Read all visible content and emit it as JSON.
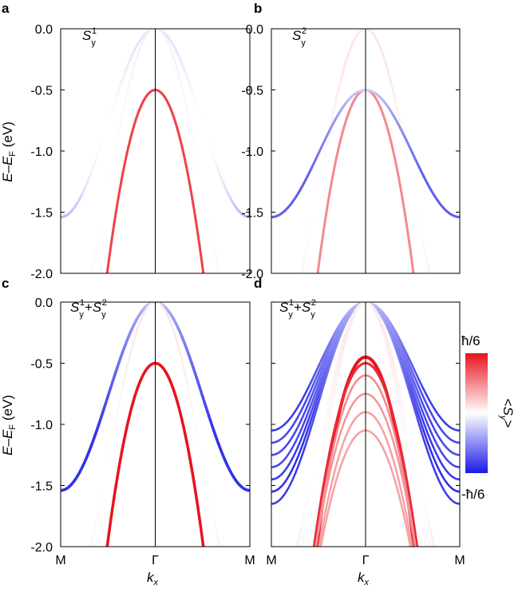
{
  "chart_data": [
    {
      "id": "a",
      "type": "line",
      "panel_label": "a",
      "title": {
        "prefix": "",
        "main": "S",
        "sub": "y",
        "sup": "1",
        "plus": "",
        "main2": "",
        "sub2": "",
        "sup2": ""
      },
      "ylim": [
        -2.0,
        0.0
      ],
      "xlim": [
        -1,
        1
      ],
      "yticks": [
        "0.0",
        "-0.5",
        "-1.0",
        "-1.5",
        "-2.0"
      ],
      "ytick_values": [
        0.0,
        -0.5,
        -1.0,
        -1.5,
        -2.0
      ],
      "show_yticks": true,
      "show_xticks": false,
      "series": [
        {
          "name": "outer band",
          "kind": "cosine",
          "top": 0.0,
          "bottom": -1.54,
          "spin": -0.35,
          "width": 3
        },
        {
          "name": "inner band",
          "kind": "parabola",
          "top": -0.5,
          "curv": 5.8,
          "spin": 0.8,
          "width": 3
        },
        {
          "name": "upper spin-split band",
          "kind": "cosine",
          "top": 0.0,
          "bottom": -2.6,
          "spin": -0.15,
          "width": 2.5
        }
      ]
    },
    {
      "id": "b",
      "type": "line",
      "panel_label": "b",
      "title": {
        "prefix": "",
        "main": "S",
        "sub": "y",
        "sup": "2",
        "plus": "",
        "main2": "",
        "sub2": "",
        "sup2": ""
      },
      "ylim": [
        -2.0,
        0.0
      ],
      "xlim": [
        -1,
        1
      ],
      "yticks": [
        "0.0",
        "-0.5",
        "-1.0",
        "-1.5",
        "-2.0"
      ],
      "ytick_values": [
        0.0,
        -0.5,
        -1.0,
        -1.5,
        -2.0
      ],
      "show_yticks": true,
      "show_xticks": false,
      "series": [
        {
          "name": "outer band",
          "kind": "cosine",
          "top": 0.0,
          "bottom": -2.6,
          "spin": 0.3,
          "width": 3
        },
        {
          "name": "inner band",
          "kind": "parabola",
          "top": -0.5,
          "curv": 5.8,
          "spin": 0.5,
          "width": 3
        },
        {
          "name": "crossing band",
          "kind": "cosine",
          "top": -0.5,
          "bottom": -1.54,
          "spin": -0.7,
          "width": 3
        }
      ]
    },
    {
      "id": "c",
      "type": "line",
      "panel_label": "c",
      "title": {
        "prefix": "",
        "main": "S",
        "sub": "y",
        "sup": "1",
        "plus": "+",
        "main2": "S",
        "sub2": "y",
        "sup2": "2"
      },
      "ylim": [
        -2.0,
        0.0
      ],
      "xlim": [
        -1,
        1
      ],
      "yticks": [
        "0.0",
        "-0.5",
        "-1.0",
        "-1.5",
        "-2.0"
      ],
      "ytick_values": [
        0.0,
        -0.5,
        -1.0,
        -1.5,
        -2.0
      ],
      "show_yticks": true,
      "show_xticks": true,
      "series": [
        {
          "name": "outer band",
          "kind": "cosine",
          "top": 0.0,
          "bottom": -1.54,
          "spin": -0.9,
          "width": 3.5
        },
        {
          "name": "inner band",
          "kind": "parabola",
          "top": -0.5,
          "curv": 5.8,
          "spin": 1.0,
          "width": 3.5
        },
        {
          "name": "upper band",
          "kind": "cosine",
          "top": 0.0,
          "bottom": -2.6,
          "spin": 0.3,
          "width": 2.5
        }
      ]
    },
    {
      "id": "d",
      "type": "line",
      "panel_label": "d",
      "title": {
        "prefix": "",
        "main": "S",
        "sub": "y",
        "sup": "1",
        "plus": "+",
        "main2": "S",
        "sub2": "y",
        "sup2": "2"
      },
      "ylim": [
        -2.0,
        0.0
      ],
      "xlim": [
        -1,
        1
      ],
      "yticks": [
        "0.0",
        "-0.5",
        "-1.0",
        "-1.5",
        "-2.0"
      ],
      "ytick_values": [
        0.0,
        -0.5,
        -1.0,
        -1.5,
        -2.0
      ],
      "show_yticks": false,
      "show_xticks": true,
      "series": [
        {
          "name": "bulk band 1",
          "kind": "cosine",
          "top": 0.0,
          "bottom": -1.05,
          "spin": -0.85,
          "width": 2.5
        },
        {
          "name": "bulk band 2",
          "kind": "cosine",
          "top": 0.0,
          "bottom": -1.15,
          "spin": -0.8,
          "width": 2.5
        },
        {
          "name": "bulk band 3",
          "kind": "cosine",
          "top": 0.0,
          "bottom": -1.25,
          "spin": -0.8,
          "width": 2.5
        },
        {
          "name": "bulk band 4",
          "kind": "cosine",
          "top": 0.0,
          "bottom": -1.35,
          "spin": -0.8,
          "width": 2.5
        },
        {
          "name": "bulk band 5",
          "kind": "cosine",
          "top": 0.0,
          "bottom": -1.45,
          "spin": -0.85,
          "width": 2.5
        },
        {
          "name": "bulk band 6",
          "kind": "cosine",
          "top": 0.0,
          "bottom": -1.55,
          "spin": -0.9,
          "width": 2.5
        },
        {
          "name": "bulk band 7",
          "kind": "cosine",
          "top": 0.0,
          "bottom": -1.65,
          "spin": -0.85,
          "width": 2.5
        },
        {
          "name": "upper band 1",
          "kind": "cosine",
          "top": 0.0,
          "bottom": -2.4,
          "spin": 0.25,
          "width": 2.5
        },
        {
          "name": "upper band 2",
          "kind": "cosine",
          "top": 0.0,
          "bottom": -2.6,
          "spin": 0.25,
          "width": 2.5
        },
        {
          "name": "upper band 3",
          "kind": "cosine",
          "top": 0.0,
          "bottom": -2.8,
          "spin": 0.25,
          "width": 2.5
        },
        {
          "name": "upper band 4",
          "kind": "cosine",
          "top": 0.0,
          "bottom": -3.0,
          "spin": 0.25,
          "width": 2.5
        },
        {
          "name": "inner band 1",
          "kind": "parabola",
          "top": -0.45,
          "curv": 5.8,
          "spin": 1.0,
          "width": 4
        },
        {
          "name": "inner band 2",
          "kind": "parabola",
          "top": -0.5,
          "curv": 5.0,
          "spin": 0.9,
          "width": 3
        },
        {
          "name": "inner band 3",
          "kind": "parabola",
          "top": -0.6,
          "curv": 5.0,
          "spin": 0.5,
          "width": 2.5
        },
        {
          "name": "inner band 4",
          "kind": "parabola",
          "top": -0.75,
          "curv": 4.5,
          "spin": 0.45,
          "width": 2.5
        },
        {
          "name": "inner band 5",
          "kind": "parabola",
          "top": -0.9,
          "curv": 4.5,
          "spin": 0.4,
          "width": 2.5
        },
        {
          "name": "inner band 6",
          "kind": "parabola",
          "top": -1.05,
          "curv": 4.2,
          "spin": 0.4,
          "width": 2.5
        }
      ]
    }
  ],
  "axes": {
    "ylabel": {
      "e": "E",
      "dash": "–",
      "ef": "E",
      "sub": "F",
      "unit": " (eV)"
    },
    "xticks": [
      "M",
      "Γ",
      "M"
    ],
    "xlabel": {
      "k": "k",
      "sub": "x"
    }
  },
  "colorbar": {
    "label": {
      "open": "<",
      "s": "S",
      "sub": "y",
      "close": ">"
    },
    "max_label": "ħ/6",
    "min_label": "-ħ/6",
    "colors": {
      "max": "#e8131e",
      "mid": "#ffffff",
      "min": "#1a1ae6"
    }
  },
  "colors": {
    "positive": "#e8131e",
    "negative": "#1a1ae6",
    "neutral": "#ffffff",
    "axis": "#000000"
  }
}
